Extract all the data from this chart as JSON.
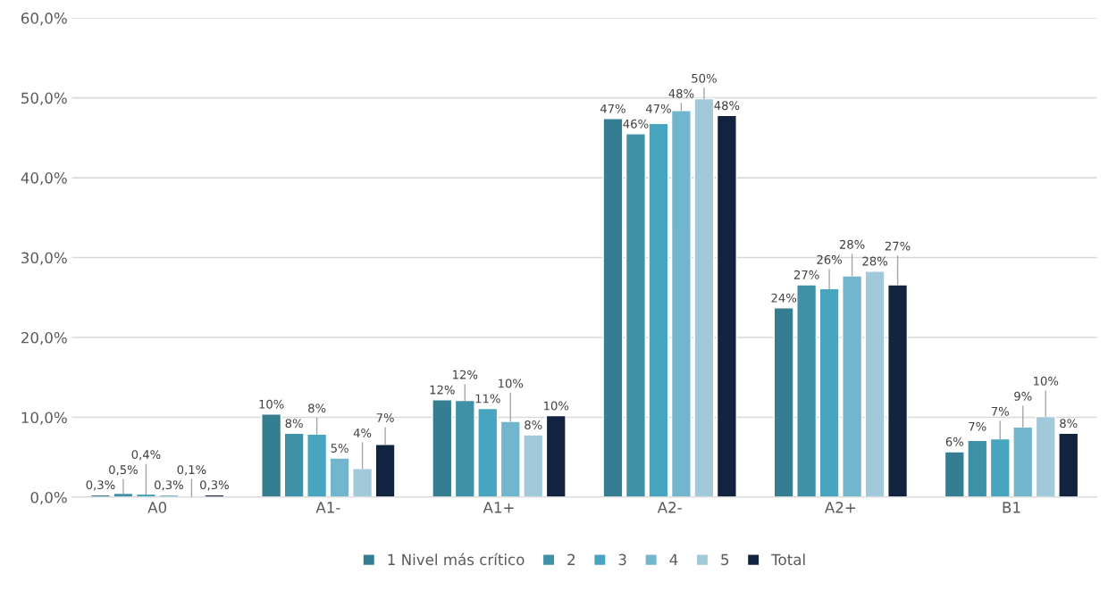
{
  "chart_data": {
    "type": "bar",
    "categories": [
      "A0",
      "A1-",
      "A1+",
      "A2-",
      "A2+",
      "B1"
    ],
    "series": [
      {
        "name": "1 Nivel más crítico",
        "color": "#357d91",
        "values": [
          0.3,
          10.4,
          12.2,
          47.4,
          23.7,
          5.7
        ],
        "value_labels": [
          "0,3%",
          "10%",
          "12%",
          "47%",
          "24%",
          "6%"
        ]
      },
      {
        "name": "2",
        "color": "#3f91a8",
        "values": [
          0.5,
          8.0,
          12.1,
          45.5,
          26.6,
          7.1
        ],
        "value_labels": [
          "0,5%",
          "8%",
          "12%",
          "46%",
          "27%",
          "7%"
        ]
      },
      {
        "name": "3",
        "color": "#48a5bf",
        "values": [
          0.4,
          7.9,
          11.1,
          46.8,
          26.1,
          7.3
        ],
        "value_labels": [
          "0,4%",
          "8%",
          "11%",
          "47%",
          "26%",
          "7%"
        ]
      },
      {
        "name": "4",
        "color": "#72b6ce",
        "values": [
          0.3,
          4.9,
          9.5,
          48.4,
          27.7,
          8.8
        ],
        "value_labels": [
          "0,3%",
          "5%",
          "10%",
          "48%",
          "28%",
          "9%"
        ]
      },
      {
        "name": "5",
        "color": "#a2c9da",
        "values": [
          0.1,
          3.6,
          7.8,
          49.9,
          28.3,
          10.1
        ],
        "value_labels": [
          "0,1%",
          "4%",
          "8%",
          "50%",
          "28%",
          "10%"
        ]
      },
      {
        "name": "Total",
        "color": "#12233f",
        "values": [
          0.3,
          6.6,
          10.2,
          47.8,
          26.6,
          8.0
        ],
        "value_labels": [
          "0,3%",
          "7%",
          "10%",
          "48%",
          "27%",
          "8%"
        ]
      }
    ],
    "ylim": [
      0,
      60
    ],
    "yticks": [
      {
        "value": 0,
        "label": "0,0%"
      },
      {
        "value": 10,
        "label": "10,0%"
      },
      {
        "value": 20,
        "label": "20,0%"
      },
      {
        "value": 30,
        "label": "30,0%"
      },
      {
        "value": 40,
        "label": "40,0%"
      },
      {
        "value": 50,
        "label": "50,0%"
      },
      {
        "value": 60,
        "label": "60,0%"
      }
    ],
    "grid": "y",
    "legend": "bottom"
  }
}
